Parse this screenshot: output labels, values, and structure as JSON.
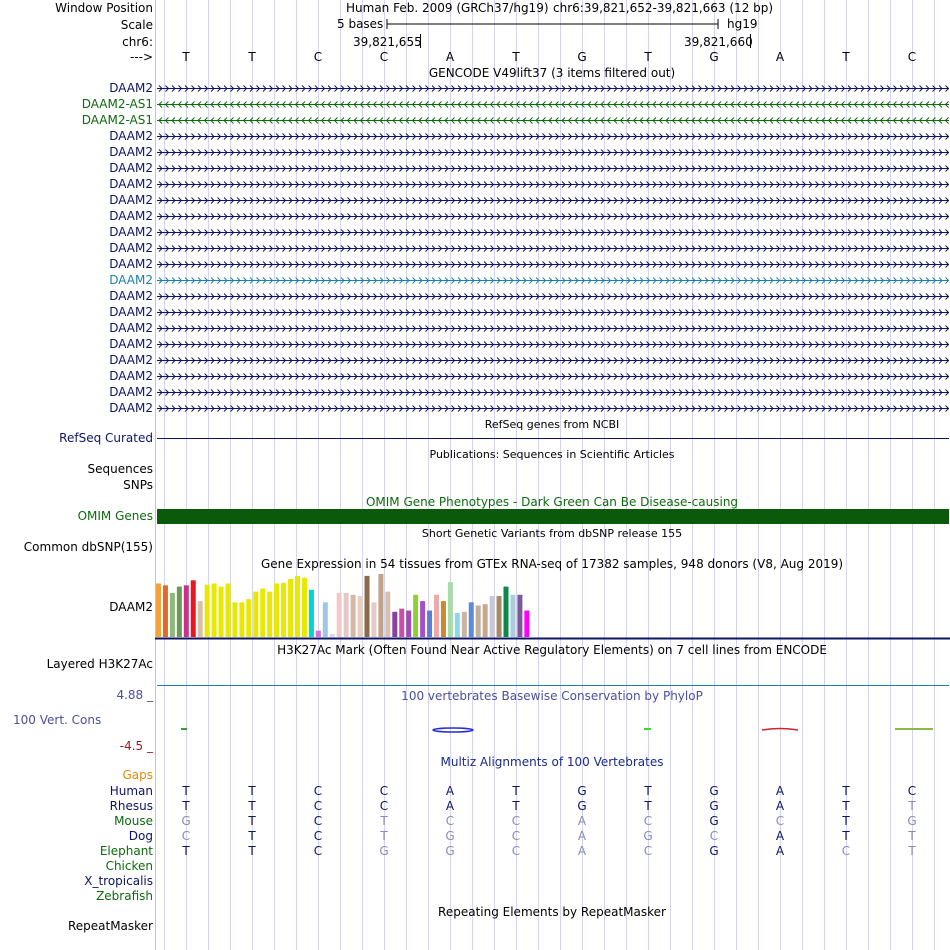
{
  "colors": {
    "navy": "#0d1464",
    "green": "#0d6a0d",
    "teal": "#1f7fa8",
    "omim": "#0b5a0b",
    "conservation_title": "#4a4f9a"
  },
  "header": {
    "window_position_label": "Window Position",
    "assembly_text": "Human Feb. 2009 (GRCh37/hg19)",
    "position_text": "chr6:39,821,652-39,821,663 (12 bp)",
    "scale_label": "Scale",
    "scale_value": "5 bases",
    "assembly_short": "hg19",
    "chrom_label": "chr6:",
    "coord_left": "39,821,655",
    "coord_right": "39,821,660",
    "strand_label": "--->",
    "bases": [
      "T",
      "T",
      "C",
      "C",
      "A",
      "T",
      "G",
      "T",
      "G",
      "A",
      "T",
      "C"
    ]
  },
  "gencode": {
    "title": "GENCODE V49lift37 (3 items filtered out)",
    "items": [
      {
        "label": "DAAM2",
        "dir": "right",
        "color": "navy"
      },
      {
        "label": "DAAM2-AS1",
        "dir": "left",
        "color": "green"
      },
      {
        "label": "DAAM2-AS1",
        "dir": "left",
        "color": "green"
      },
      {
        "label": "DAAM2",
        "dir": "right",
        "color": "navy"
      },
      {
        "label": "DAAM2",
        "dir": "right",
        "color": "navy"
      },
      {
        "label": "DAAM2",
        "dir": "right",
        "color": "navy"
      },
      {
        "label": "DAAM2",
        "dir": "right",
        "color": "navy"
      },
      {
        "label": "DAAM2",
        "dir": "right",
        "color": "navy"
      },
      {
        "label": "DAAM2",
        "dir": "right",
        "color": "navy"
      },
      {
        "label": "DAAM2",
        "dir": "right",
        "color": "navy"
      },
      {
        "label": "DAAM2",
        "dir": "right",
        "color": "navy"
      },
      {
        "label": "DAAM2",
        "dir": "right",
        "color": "navy"
      },
      {
        "label": "DAAM2",
        "dir": "right",
        "color": "teal"
      },
      {
        "label": "DAAM2",
        "dir": "right",
        "color": "navy"
      },
      {
        "label": "DAAM2",
        "dir": "right",
        "color": "navy"
      },
      {
        "label": "DAAM2",
        "dir": "right",
        "color": "navy"
      },
      {
        "label": "DAAM2",
        "dir": "right",
        "color": "navy"
      },
      {
        "label": "DAAM2",
        "dir": "right",
        "color": "navy"
      },
      {
        "label": "DAAM2",
        "dir": "right",
        "color": "navy"
      },
      {
        "label": "DAAM2",
        "dir": "right",
        "color": "navy"
      },
      {
        "label": "DAAM2",
        "dir": "right",
        "color": "navy"
      }
    ]
  },
  "refseq": {
    "title": "RefSeq genes from NCBI",
    "label": "RefSeq Curated"
  },
  "publications": {
    "title": "Publications: Sequences in Scientific Articles",
    "label1": "Sequences",
    "label2": "SNPs"
  },
  "omim": {
    "title": "OMIM Gene Phenotypes - Dark Green Can Be Disease-causing",
    "label": "OMIM Genes"
  },
  "dbsnp": {
    "title": "Short Genetic Variants from dbSNP release 155",
    "label": "Common dbSNP(155)"
  },
  "gtex": {
    "title": "Gene Expression in 54 tissues from GTEx RNA-seq of 17382 samples, 948 donors (V8, Aug 2019)",
    "label": "DAAM2",
    "bar_heights": [
      0.85,
      0.82,
      0.7,
      0.8,
      0.82,
      0.9,
      0.57,
      0.83,
      0.85,
      0.8,
      0.85,
      0.55,
      0.55,
      0.6,
      0.72,
      0.77,
      0.72,
      0.85,
      0.86,
      0.92,
      0.97,
      0.94,
      0.75,
      0.1,
      0.55,
      0.05,
      0.7,
      0.7,
      0.67,
      0.65,
      0.97,
      0.55,
      1.0,
      0.72,
      0.4,
      0.45,
      0.42,
      0.67,
      0.57,
      0.42,
      0.67,
      0.57,
      0.87,
      0.38,
      0.4,
      0.55,
      0.5,
      0.52,
      0.65,
      0.65,
      0.8,
      0.67,
      0.67,
      0.42
    ],
    "bar_colors": [
      "#f7a13a",
      "#e3692a",
      "#8fb87a",
      "#6a9a55",
      "#c6338a",
      "#e8161f",
      "#d8bfa6",
      "#e8e800",
      "#e8e800",
      "#e8e800",
      "#e8e800",
      "#e8e800",
      "#e8e800",
      "#e8e800",
      "#e8e800",
      "#e8e800",
      "#e8e800",
      "#e8e800",
      "#e8e800",
      "#e8e800",
      "#e8e800",
      "#e8e800",
      "#00d4cf",
      "#d46fe0",
      "#9ec7e3",
      "#dcdcdc",
      "#f2c9c9",
      "#e3c8c8",
      "#d6b7a3",
      "#e8d0c0",
      "#8a6a48",
      "#e8c8c8",
      "#bfa48b",
      "#d8c0b0",
      "#8a3fa3",
      "#c84fa8",
      "#9a4fb0",
      "#8fcf3a",
      "#a64fc8",
      "#5a7fd8",
      "#eeaaa8",
      "#c98a30",
      "#a8dba8",
      "#8ad8ee",
      "#ccb2a2",
      "#5a8ad8",
      "#c2ae9e",
      "#c8a888",
      "#c8c8d8",
      "#a88a6a",
      "#0a8a4a",
      "#aaccdd",
      "#7a5a9a",
      "#ff00ff"
    ]
  },
  "h3k27ac": {
    "title": "H3K27Ac Mark (Often Found Near Active Regulatory Elements) on 7 cell lines from ENCODE",
    "label": "Layered H3K27Ac"
  },
  "conservation": {
    "title": "100 vertebrates Basewise Conservation by PhyloP",
    "label": "100 Vert. Cons",
    "max": "4.88 _",
    "min": "-4.5 _"
  },
  "multiz": {
    "title": "Multiz Alignments of 100 Vertebrates",
    "gaps_label": "Gaps",
    "species": [
      {
        "label": "Human",
        "color": "navy",
        "bases": [
          "T",
          "T",
          "C",
          "C",
          "A",
          "T",
          "G",
          "T",
          "G",
          "A",
          "T",
          "C"
        ],
        "dim": [
          0,
          0,
          0,
          0,
          0,
          0,
          0,
          0,
          0,
          0,
          0,
          0
        ]
      },
      {
        "label": "Rhesus",
        "color": "navy",
        "bases": [
          "T",
          "T",
          "C",
          "C",
          "A",
          "T",
          "G",
          "T",
          "G",
          "A",
          "T",
          "T"
        ],
        "dim": [
          0,
          0,
          0,
          0,
          0,
          0,
          0,
          0,
          0,
          0,
          0,
          1
        ]
      },
      {
        "label": "Mouse",
        "color": "green",
        "bases": [
          "G",
          "T",
          "C",
          "T",
          "C",
          "C",
          "A",
          "C",
          "G",
          "C",
          "T",
          "G"
        ],
        "dim": [
          1,
          0,
          0,
          1,
          1,
          1,
          1,
          1,
          0,
          1,
          0,
          1
        ]
      },
      {
        "label": "Dog",
        "color": "navy",
        "bases": [
          "C",
          "T",
          "C",
          "T",
          "G",
          "C",
          "A",
          "G",
          "C",
          "A",
          "T",
          "T"
        ],
        "dim": [
          1,
          0,
          0,
          1,
          1,
          1,
          1,
          1,
          1,
          0,
          0,
          1
        ]
      },
      {
        "label": "Elephant",
        "color": "green",
        "bases": [
          "T",
          "T",
          "C",
          "G",
          "G",
          "C",
          "A",
          "C",
          "G",
          "A",
          "C",
          "T"
        ],
        "dim": [
          0,
          0,
          0,
          1,
          1,
          1,
          1,
          1,
          0,
          0,
          1,
          1
        ]
      },
      {
        "label": "Chicken",
        "color": "green",
        "bases": [],
        "dim": []
      },
      {
        "label": "X_tropicalis",
        "color": "navy",
        "bases": [],
        "dim": []
      },
      {
        "label": "Zebrafish",
        "color": "green",
        "bases": [],
        "dim": []
      }
    ]
  },
  "repeatmasker": {
    "title": "Repeating Elements by RepeatMasker",
    "label": "RepeatMasker"
  }
}
